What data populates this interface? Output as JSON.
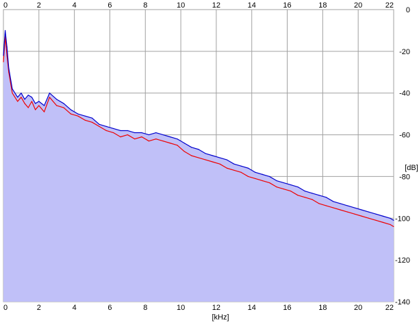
{
  "colors": {
    "background": "#ffffff",
    "plot_background": "#ffffff",
    "grid": "#a0a0a0",
    "fill": "#c0c0f8",
    "series_red": "#ee0000",
    "series_blue": "#0000cc"
  },
  "chart_data": {
    "type": "line",
    "title": "",
    "xlabel": "[kHz]",
    "ylabel": "[dB]",
    "xlim": [
      0,
      22
    ],
    "ylim": [
      -140,
      0
    ],
    "x_ticks": [
      0,
      2,
      4,
      6,
      8,
      10,
      12,
      14,
      16,
      18,
      20,
      22
    ],
    "x_tick_labels": [
      "0",
      "2",
      "4",
      "6",
      "8",
      "10",
      "12",
      "14",
      "16",
      "18",
      "20",
      "22"
    ],
    "y_ticks": [
      0,
      -20,
      -40,
      -60,
      -80,
      -100,
      -120,
      -140
    ],
    "y_tick_labels": [
      "0",
      "-20",
      "-40",
      "-60",
      "-80",
      "-100",
      "-120",
      "-140"
    ],
    "x_axis_top_labels": true,
    "x_axis_bottom_labels": true,
    "grid": true,
    "fill_under_curve": true,
    "series": [
      {
        "color": "#ee0000",
        "x": [
          0.0,
          0.1,
          0.2,
          0.3,
          0.5,
          0.8,
          1.0,
          1.2,
          1.4,
          1.6,
          1.8,
          2.0,
          2.3,
          2.6,
          3.0,
          3.4,
          3.8,
          4.2,
          4.6,
          5.0,
          5.4,
          5.8,
          6.2,
          6.6,
          7.0,
          7.4,
          7.8,
          8.2,
          8.6,
          9.0,
          9.4,
          9.8,
          10.2,
          10.6,
          11.0,
          11.4,
          11.8,
          12.2,
          12.6,
          13.0,
          13.4,
          13.8,
          14.2,
          14.6,
          15.0,
          15.4,
          15.8,
          16.2,
          16.6,
          17.0,
          17.4,
          17.8,
          18.2,
          18.6,
          19.0,
          19.4,
          19.8,
          20.2,
          20.6,
          21.0,
          21.4,
          21.8,
          22.0
        ],
        "y": [
          -25,
          -13,
          -22,
          -30,
          -40,
          -44,
          -42,
          -45,
          -47,
          -44,
          -48,
          -46,
          -49,
          -42,
          -46,
          -47,
          -50,
          -51,
          -53,
          -54,
          -56,
          -58,
          -59,
          -61,
          -60,
          -62,
          -61,
          -63,
          -62,
          -63,
          -64,
          -65,
          -68,
          -70,
          -71,
          -72,
          -73,
          -74,
          -76,
          -77,
          -78,
          -80,
          -81,
          -82,
          -83,
          -85,
          -86,
          -87,
          -89,
          -90,
          -91,
          -93,
          -94,
          -95,
          -96,
          -97,
          -98,
          -99,
          -100,
          -101,
          -102,
          -103,
          -104
        ]
      },
      {
        "color": "#0000cc",
        "x": [
          0.0,
          0.1,
          0.2,
          0.3,
          0.5,
          0.8,
          1.0,
          1.2,
          1.4,
          1.6,
          1.8,
          2.0,
          2.3,
          2.6,
          3.0,
          3.4,
          3.8,
          4.2,
          4.6,
          5.0,
          5.4,
          5.8,
          6.2,
          6.6,
          7.0,
          7.4,
          7.8,
          8.2,
          8.6,
          9.0,
          9.4,
          9.8,
          10.2,
          10.6,
          11.0,
          11.4,
          11.8,
          12.2,
          12.6,
          13.0,
          13.4,
          13.8,
          14.2,
          14.6,
          15.0,
          15.4,
          15.8,
          16.2,
          16.6,
          17.0,
          17.4,
          17.8,
          18.2,
          18.6,
          19.0,
          19.4,
          19.8,
          20.2,
          20.6,
          21.0,
          21.4,
          21.8,
          22.0
        ],
        "y": [
          -22,
          -10,
          -18,
          -28,
          -38,
          -42,
          -40,
          -43,
          -41,
          -42,
          -45,
          -44,
          -46,
          -40,
          -43,
          -45,
          -48,
          -50,
          -51,
          -52,
          -55,
          -56,
          -57,
          -58,
          -58,
          -59,
          -59,
          -60,
          -59,
          -60,
          -61,
          -62,
          -64,
          -66,
          -67,
          -69,
          -70,
          -71,
          -72,
          -74,
          -75,
          -76,
          -78,
          -79,
          -80,
          -82,
          -83,
          -84,
          -85,
          -87,
          -88,
          -89,
          -90,
          -92,
          -93,
          -94,
          -95,
          -96,
          -97,
          -98,
          -99,
          -100,
          -101
        ]
      }
    ]
  }
}
